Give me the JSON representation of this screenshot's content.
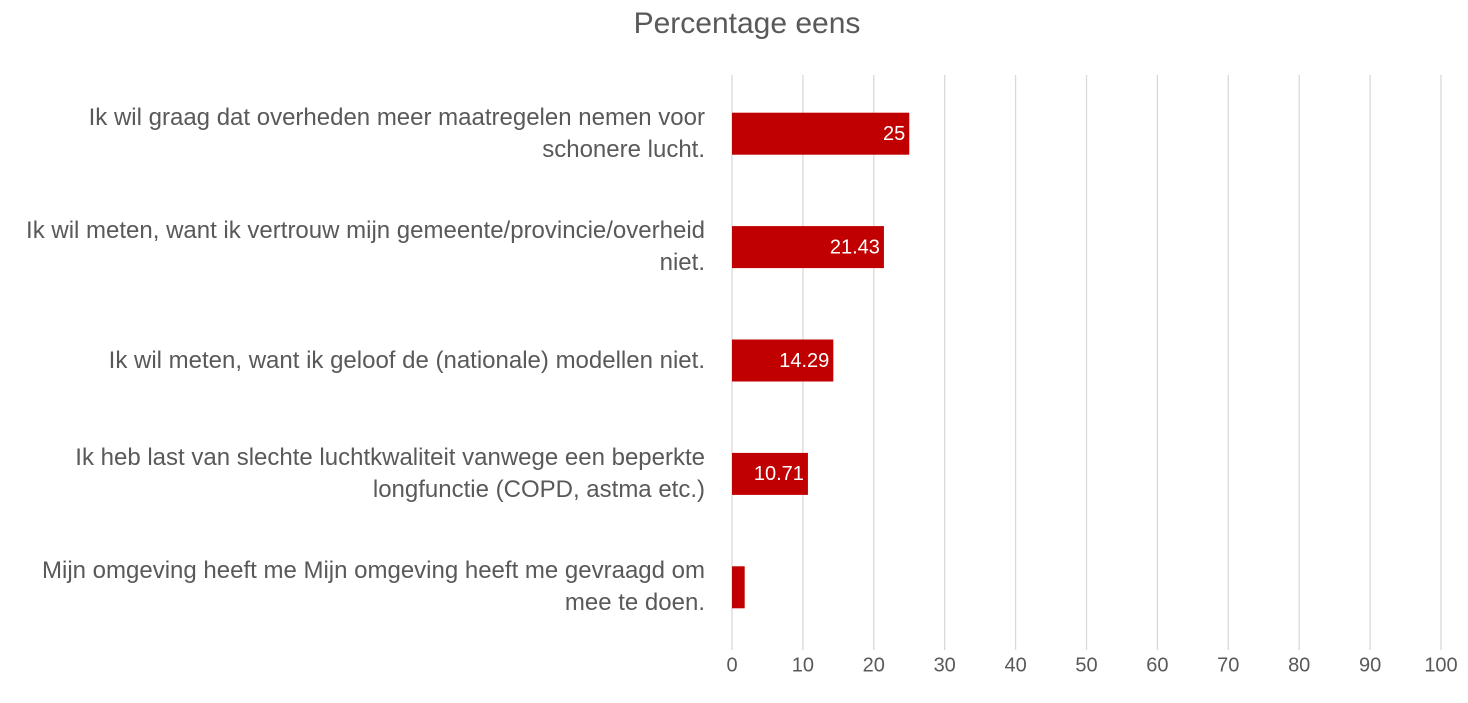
{
  "chart_data": {
    "type": "hbar",
    "title": "Percentage eens",
    "categories": [
      "Ik wil graag dat overheden meer maatregelen nemen voor schonere lucht.",
      "Ik wil meten, want ik vertrouw mijn gemeente/provincie/overheid niet.",
      "Ik wil meten, want ik geloof de (nationale) modellen niet.",
      "Ik heb last van slechte luchtkwaliteit vanwege een beperkte longfunctie (COPD, astma etc.)",
      "Mijn omgeving heeft me Mijn omgeving heeft me gevraagd om mee te doen."
    ],
    "values": [
      25,
      21.43,
      14.29,
      10.71,
      1.79
    ],
    "value_labels": [
      "25",
      "21.43",
      "14.29",
      "10.71",
      null
    ],
    "color": "#c00000",
    "xlim": [
      0,
      100
    ],
    "xticks": [
      0,
      10,
      20,
      30,
      40,
      50,
      60,
      70,
      80,
      90,
      100
    ],
    "grid": true
  }
}
